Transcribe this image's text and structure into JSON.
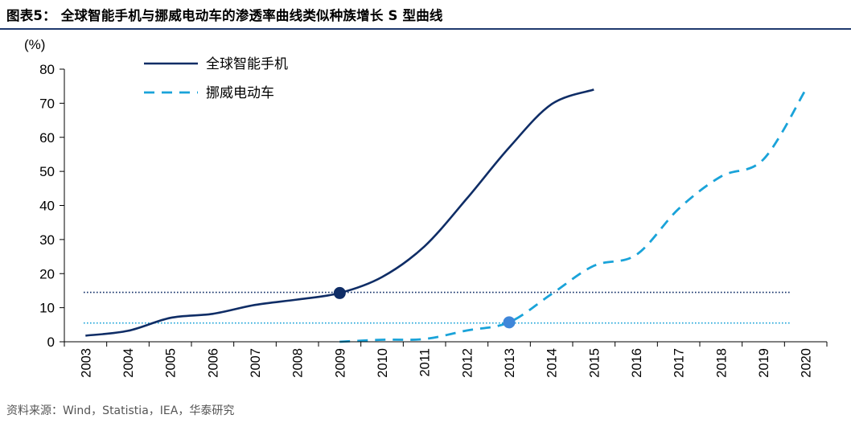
{
  "header": {
    "title": "图表5：  全球智能手机与挪威电动车的渗透率曲线类似种族增长 S 型曲线"
  },
  "footer": {
    "source": "资料来源：Wind，Statistia，IEA，华泰研究"
  },
  "colors": {
    "smartphone": "#0f2d66",
    "ev": "#1aa3d9",
    "ev_marker": "#3f86d9",
    "grid_axis": "#000000",
    "title_rule": "#1f3a6e"
  },
  "chart_data": {
    "type": "line",
    "title": "",
    "unit_label": "(%)",
    "xlabel": "",
    "ylabel": "(%)",
    "ylim": [
      0,
      80
    ],
    "yticks": [
      0,
      10,
      20,
      30,
      40,
      50,
      60,
      70,
      80
    ],
    "categories": [
      "2003",
      "2004",
      "2005",
      "2006",
      "2007",
      "2008",
      "2009",
      "2010",
      "2011",
      "2012",
      "2013",
      "2014",
      "2015",
      "2016",
      "2017",
      "2018",
      "2019",
      "2020"
    ],
    "legend_position": "top-left",
    "grid": false,
    "series": [
      {
        "name": "全球智能手机",
        "style": "solid",
        "values": [
          1.8,
          3.2,
          7.0,
          8.2,
          10.8,
          12.4,
          14.3,
          19.0,
          28.0,
          42.0,
          57.0,
          69.7,
          74.0,
          null,
          null,
          null,
          null,
          null
        ],
        "marker": {
          "category": "2009",
          "value": 14.3
        },
        "reference_line": 14.5
      },
      {
        "name": "挪威电动车",
        "style": "dashed",
        "values": [
          null,
          null,
          null,
          null,
          null,
          null,
          0.0,
          0.6,
          0.8,
          3.3,
          5.7,
          14.0,
          22.3,
          25.5,
          39.0,
          48.5,
          53.5,
          74.0
        ],
        "marker": {
          "category": "2013",
          "value": 5.7
        },
        "reference_line": 5.5
      }
    ]
  }
}
